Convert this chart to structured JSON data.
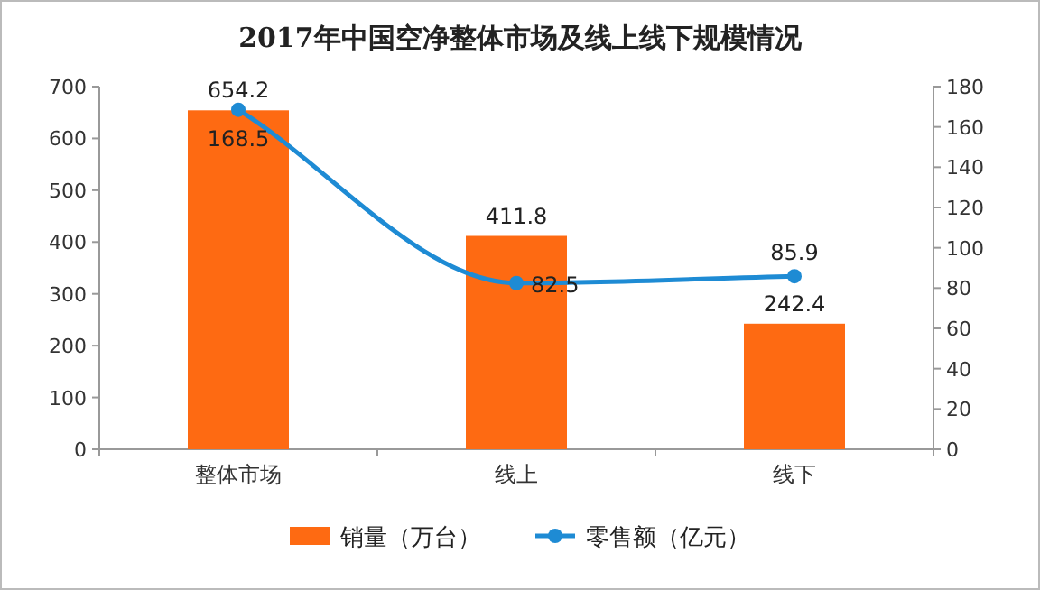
{
  "chart_data": {
    "type": "bar",
    "title": "2017年中国空净整体市场及线上线下规模情况",
    "categories": [
      "整体市场",
      "线上",
      "线下"
    ],
    "series": [
      {
        "name": "销量（万台）",
        "color": "#fe6a12",
        "values": [
          654.2,
          411.8,
          242.4
        ]
      },
      {
        "name": "零售额（亿元）",
        "type": "line",
        "axis": "y2",
        "color": "#1e8bd4",
        "values": [
          168.5,
          82.5,
          85.9
        ]
      }
    ],
    "ylim": [
      0,
      700
    ],
    "yticks": [
      0,
      100,
      200,
      300,
      400,
      500,
      600,
      700
    ],
    "y2lim": [
      0,
      180
    ],
    "y2ticks": [
      0,
      20,
      40,
      60,
      80,
      100,
      120,
      140,
      160,
      180
    ],
    "data_labels": true,
    "legend": "bottom",
    "marker": "circle"
  }
}
